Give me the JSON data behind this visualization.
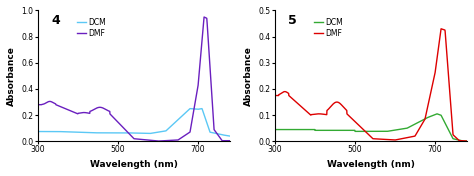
{
  "chart4": {
    "title": "4",
    "ylabel": "Absorbance",
    "xlabel": "Wavelength (nm)",
    "xlim": [
      300,
      780
    ],
    "ylim": [
      0,
      1.0
    ],
    "yticks": [
      0,
      0.2,
      0.4,
      0.6,
      0.8,
      1.0
    ],
    "xticks": [
      300,
      500,
      700
    ],
    "dcm_color": "#5BC8F5",
    "dmf_color": "#6A1FBF",
    "dcm_label": "DCM",
    "dmf_label": "DMF"
  },
  "chart5": {
    "title": "5",
    "ylabel": "Absorbance",
    "xlabel": "Wavelength (nm)",
    "xlim": [
      300,
      780
    ],
    "ylim": [
      0,
      0.5
    ],
    "yticks": [
      0,
      0.1,
      0.2,
      0.3,
      0.4,
      0.5
    ],
    "xticks": [
      300,
      500,
      700
    ],
    "dcm_color": "#33AA33",
    "dmf_color": "#DD0000",
    "dcm_label": "DCM",
    "dmf_label": "DMF"
  }
}
